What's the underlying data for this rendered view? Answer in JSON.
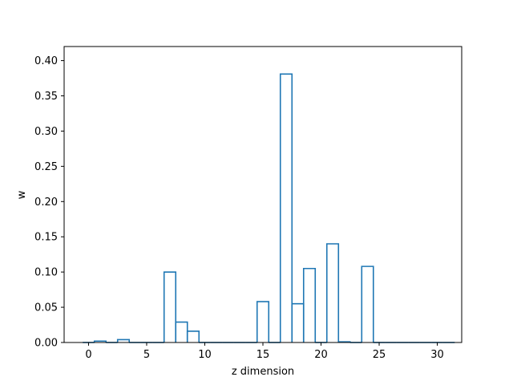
{
  "chart_data": {
    "type": "bar",
    "style": "step-histogram",
    "title": "",
    "xlabel": "z dimension",
    "ylabel": "w",
    "xlim": [
      -2.1,
      32.1
    ],
    "ylim": [
      0,
      0.42
    ],
    "x_ticks": [
      0,
      5,
      10,
      15,
      20,
      25,
      30
    ],
    "y_ticks": [
      0.0,
      0.05,
      0.1,
      0.15,
      0.2,
      0.25,
      0.3,
      0.35,
      0.4
    ],
    "grid": false,
    "line_color": "#1f77b4",
    "bin_width": 1,
    "x_start": -0.5,
    "values": [
      0.0,
      0.002,
      0.0,
      0.004,
      0.0,
      0.0,
      0.0,
      0.1,
      0.029,
      0.016,
      0.0,
      0.0,
      0.0,
      0.0,
      0.0,
      0.058,
      0.0,
      0.381,
      0.055,
      0.105,
      0.0,
      0.14,
      0.001,
      0.0,
      0.108,
      0.0,
      0.0,
      0.0,
      0.0,
      0.0,
      0.0,
      0.0
    ]
  }
}
